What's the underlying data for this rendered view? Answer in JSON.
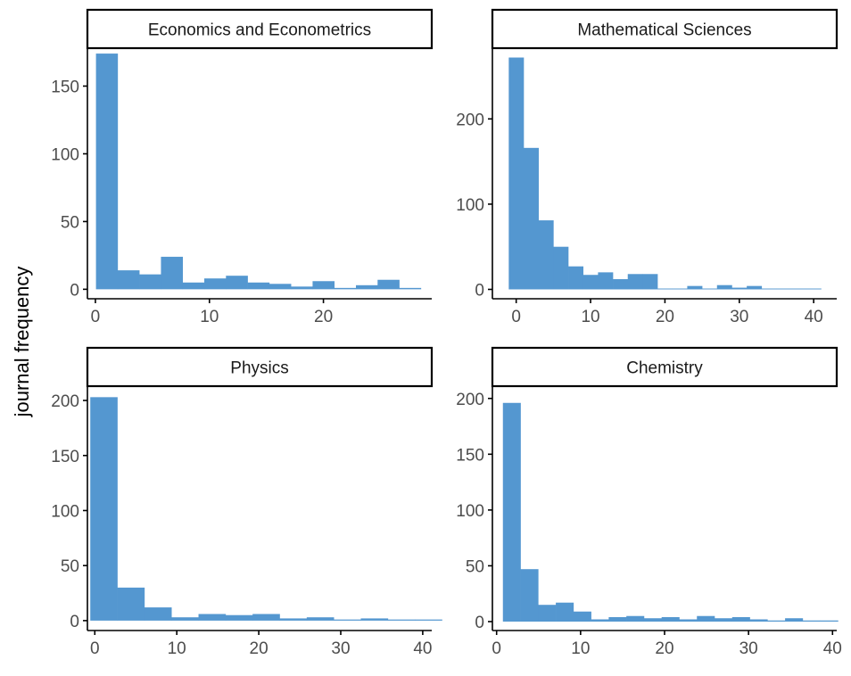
{
  "ylabel": "journal frequency",
  "colors": {
    "bar": "#5497D0",
    "axis": "#000000",
    "tick_text": "#4D4D4D",
    "strip_border": "#000000"
  },
  "chart_data": [
    {
      "type": "bar",
      "title": "Economics and Econometrics",
      "bin_width": 1.9,
      "bins": [
        {
          "x": 1.0,
          "count": 174
        },
        {
          "x": 2.9,
          "count": 14
        },
        {
          "x": 4.8,
          "count": 11
        },
        {
          "x": 6.7,
          "count": 24
        },
        {
          "x": 8.6,
          "count": 5
        },
        {
          "x": 10.5,
          "count": 8
        },
        {
          "x": 12.4,
          "count": 10
        },
        {
          "x": 14.3,
          "count": 5
        },
        {
          "x": 16.2,
          "count": 4
        },
        {
          "x": 18.1,
          "count": 2
        },
        {
          "x": 20.0,
          "count": 6
        },
        {
          "x": 21.9,
          "count": 1
        },
        {
          "x": 23.8,
          "count": 3
        },
        {
          "x": 25.7,
          "count": 7
        },
        {
          "x": 27.6,
          "count": 1
        }
      ],
      "xlim": [
        -0.7,
        29.5
      ],
      "ylim": [
        -7,
        178
      ],
      "xticks": [
        0,
        10,
        20
      ],
      "yticks": [
        0,
        50,
        100,
        150
      ]
    },
    {
      "type": "bar",
      "title": "Mathematical Sciences",
      "bin_width": 2.0,
      "bins": [
        {
          "x": 0,
          "count": 272
        },
        {
          "x": 2,
          "count": 166
        },
        {
          "x": 4,
          "count": 81
        },
        {
          "x": 6,
          "count": 50
        },
        {
          "x": 8,
          "count": 27
        },
        {
          "x": 10,
          "count": 17
        },
        {
          "x": 12,
          "count": 20
        },
        {
          "x": 14,
          "count": 12
        },
        {
          "x": 16,
          "count": 18
        },
        {
          "x": 18,
          "count": 18
        },
        {
          "x": 20,
          "count": 1
        },
        {
          "x": 22,
          "count": 1
        },
        {
          "x": 24,
          "count": 4
        },
        {
          "x": 26,
          "count": 1
        },
        {
          "x": 28,
          "count": 5
        },
        {
          "x": 30,
          "count": 2
        },
        {
          "x": 32,
          "count": 4
        },
        {
          "x": 34,
          "count": 1
        },
        {
          "x": 36,
          "count": 1
        },
        {
          "x": 38,
          "count": 1
        },
        {
          "x": 40,
          "count": 1
        }
      ],
      "xlim": [
        -3.2,
        43.1
      ],
      "ylim": [
        -11,
        283
      ],
      "xticks": [
        0,
        10,
        20,
        30,
        40
      ],
      "yticks": [
        0,
        100,
        200
      ]
    },
    {
      "type": "bar",
      "title": "Physics",
      "bin_width": 3.3,
      "bins": [
        {
          "x": 1.1,
          "count": 203
        },
        {
          "x": 4.4,
          "count": 30
        },
        {
          "x": 7.7,
          "count": 12
        },
        {
          "x": 11.0,
          "count": 3
        },
        {
          "x": 14.3,
          "count": 6
        },
        {
          "x": 17.6,
          "count": 5
        },
        {
          "x": 20.9,
          "count": 6
        },
        {
          "x": 24.2,
          "count": 2
        },
        {
          "x": 27.5,
          "count": 3
        },
        {
          "x": 30.8,
          "count": 1
        },
        {
          "x": 34.1,
          "count": 2
        },
        {
          "x": 37.4,
          "count": 1
        },
        {
          "x": 40.7,
          "count": 1
        }
      ],
      "xlim": [
        -0.9,
        41.1
      ],
      "ylim": [
        -9,
        213
      ],
      "xticks": [
        0,
        10,
        20,
        30,
        40
      ],
      "yticks": [
        0,
        50,
        100,
        150,
        200
      ]
    },
    {
      "type": "bar",
      "title": "Chemistry",
      "bin_width": 2.1,
      "bins": [
        {
          "x": 1.8,
          "count": 196
        },
        {
          "x": 3.9,
          "count": 47
        },
        {
          "x": 6.0,
          "count": 15
        },
        {
          "x": 8.1,
          "count": 17
        },
        {
          "x": 10.2,
          "count": 9
        },
        {
          "x": 12.3,
          "count": 2
        },
        {
          "x": 14.4,
          "count": 4
        },
        {
          "x": 16.5,
          "count": 5
        },
        {
          "x": 18.6,
          "count": 3
        },
        {
          "x": 20.7,
          "count": 4
        },
        {
          "x": 22.8,
          "count": 2
        },
        {
          "x": 24.9,
          "count": 5
        },
        {
          "x": 27.0,
          "count": 3
        },
        {
          "x": 29.1,
          "count": 4
        },
        {
          "x": 31.2,
          "count": 2
        },
        {
          "x": 33.3,
          "count": 1
        },
        {
          "x": 35.4,
          "count": 3
        },
        {
          "x": 37.5,
          "count": 1
        },
        {
          "x": 39.6,
          "count": 1
        }
      ],
      "xlim": [
        -0.5,
        40.5
      ],
      "ylim": [
        -8,
        211
      ],
      "xticks": [
        0,
        10,
        20,
        30,
        40
      ],
      "yticks": [
        0,
        50,
        100,
        150,
        200
      ]
    }
  ]
}
